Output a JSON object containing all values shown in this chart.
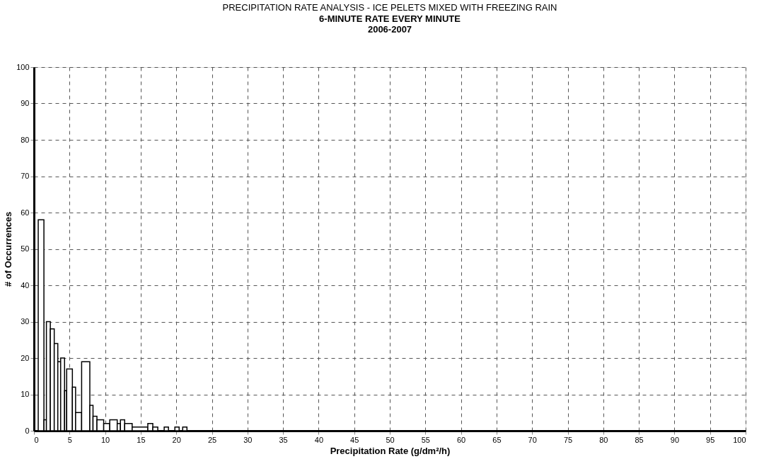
{
  "chart_data": {
    "type": "histogram",
    "title": "PRECIPITATION RATE ANALYSIS - ICE PELETS MIXED WITH FREEZING RAIN",
    "subtitle": [
      "6-MINUTE RATE EVERY MINUTE",
      "2006-2007"
    ],
    "xlabel": "Precipitation Rate (g/dm²/h)",
    "ylabel": "# of Occurrences",
    "bins": [
      0.6,
      1.4,
      1.75,
      2.3,
      2.85,
      3.35,
      3.75,
      4.3,
      4.6,
      5.4,
      5.85,
      6.7,
      7.85,
      8.3,
      8.85,
      9.8,
      10.65,
      11.7,
      12.15,
      12.75,
      13.8,
      16.0,
      16.7,
      17.4,
      18.3,
      18.9,
      19.8,
      20.4,
      20.9,
      21.5
    ],
    "values": [
      58,
      3,
      30,
      28,
      24,
      19,
      20,
      11,
      17,
      12,
      5,
      19,
      7,
      4,
      3,
      2,
      3,
      2,
      3,
      2,
      1,
      2,
      1,
      0,
      1,
      0,
      1,
      0,
      1
    ],
    "color": "#ffffff",
    "xlim": [
      0,
      100
    ],
    "xticks": [
      0,
      5,
      10,
      15,
      20,
      25,
      30,
      35,
      40,
      45,
      50,
      55,
      60,
      65,
      70,
      75,
      80,
      85,
      90,
      95,
      100
    ],
    "ylim": [
      0,
      100
    ],
    "yticks": [
      0,
      10,
      20,
      30,
      40,
      50,
      60,
      70,
      80,
      90,
      100
    ],
    "grid": true
  }
}
